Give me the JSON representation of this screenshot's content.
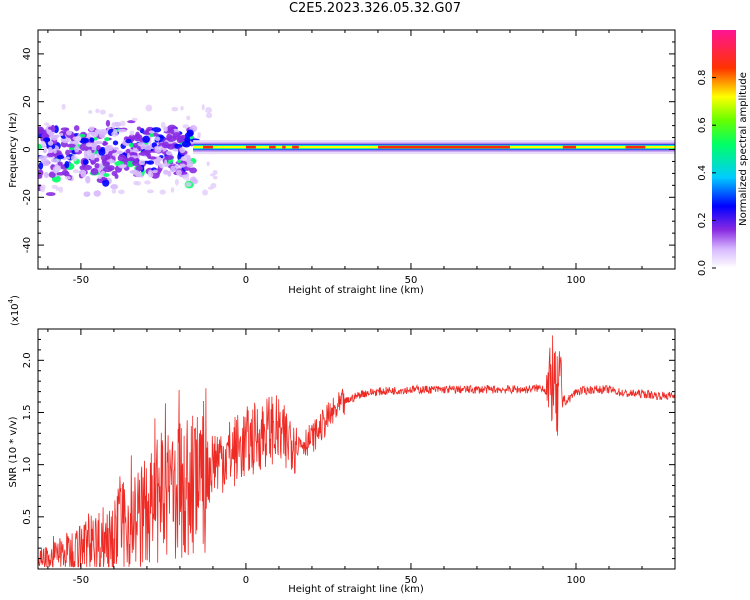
{
  "title": "C2E5.2023.326.05.32.G07",
  "colors": {
    "snr_line": "#ee2a24",
    "frame": "#000000",
    "colormap": [
      "#ffffff",
      "#8a2be2",
      "#0000ff",
      "#00ffff",
      "#00ff00",
      "#ffff00",
      "#ff0000",
      "#ff1493"
    ]
  },
  "chart_data": [
    {
      "type": "heatmap",
      "xlabel": "Height of straight line (km)",
      "ylabel": "Frequency (Hz)",
      "xlim": [
        -63,
        130
      ],
      "ylim": [
        -50,
        50
      ],
      "x_ticks": [
        -50,
        0,
        50,
        100
      ],
      "y_ticks": [
        -40,
        -20,
        0,
        20,
        40
      ],
      "x_tick_labels": [
        "-50",
        "0",
        "50",
        "100"
      ],
      "y_tick_labels": [
        "-40",
        "-20",
        "0",
        "20",
        "40"
      ],
      "colorbar": {
        "label": "Normalized spectral amplitude",
        "range": [
          0,
          1
        ],
        "ticks": [
          0.0,
          0.2,
          0.4,
          0.6,
          0.8
        ],
        "tick_labels": [
          "0.0",
          "0.2",
          "0.4",
          "0.6",
          "0.8"
        ]
      },
      "description_regions": [
        {
          "x_range": [
            -63,
            -15
          ],
          "freq_range": [
            -12,
            8
          ],
          "character": "scattered blobs"
        },
        {
          "x_range": [
            -15,
            130
          ],
          "freq_center": 1,
          "character": "narrow band"
        }
      ]
    },
    {
      "type": "line",
      "xlabel": "Height of straight line (km)",
      "ylabel": "SNR (10 * v/v)",
      "y_multiplier": "(x10",
      "y_multiplier_exp": "4",
      "y_multiplier_close": ")",
      "xlim": [
        -63,
        130
      ],
      "ylim": [
        0,
        2.3
      ],
      "x_ticks": [
        -50,
        0,
        50,
        100
      ],
      "y_ticks": [
        0.5,
        1.0,
        1.5,
        2.0
      ],
      "x_tick_labels": [
        "-50",
        "0",
        "50",
        "100"
      ],
      "y_tick_labels": [
        "0.5",
        "1.0",
        "1.5",
        "2.0"
      ],
      "series": [
        {
          "x": [
            -63,
            -55,
            -45,
            -40,
            -35,
            -30,
            -25,
            -20,
            -15,
            -12,
            -10,
            -5,
            0,
            5,
            8,
            10,
            12,
            14,
            16,
            20,
            25,
            30,
            35,
            40,
            50,
            60,
            70,
            80,
            85,
            90,
            92,
            93,
            94,
            95,
            97,
            100,
            105,
            110,
            115,
            120,
            125,
            130
          ],
          "y": [
            0.08,
            0.15,
            0.25,
            0.35,
            0.45,
            0.55,
            0.65,
            0.75,
            0.8,
            0.88,
            1.05,
            1.1,
            1.2,
            1.3,
            1.35,
            1.3,
            1.2,
            1.3,
            1.2,
            1.25,
            1.45,
            1.6,
            1.68,
            1.7,
            1.72,
            1.72,
            1.72,
            1.72,
            1.72,
            1.74,
            1.65,
            1.9,
            1.55,
            1.7,
            1.6,
            1.7,
            1.72,
            1.72,
            1.68,
            1.68,
            1.66,
            1.66
          ]
        }
      ]
    }
  ]
}
